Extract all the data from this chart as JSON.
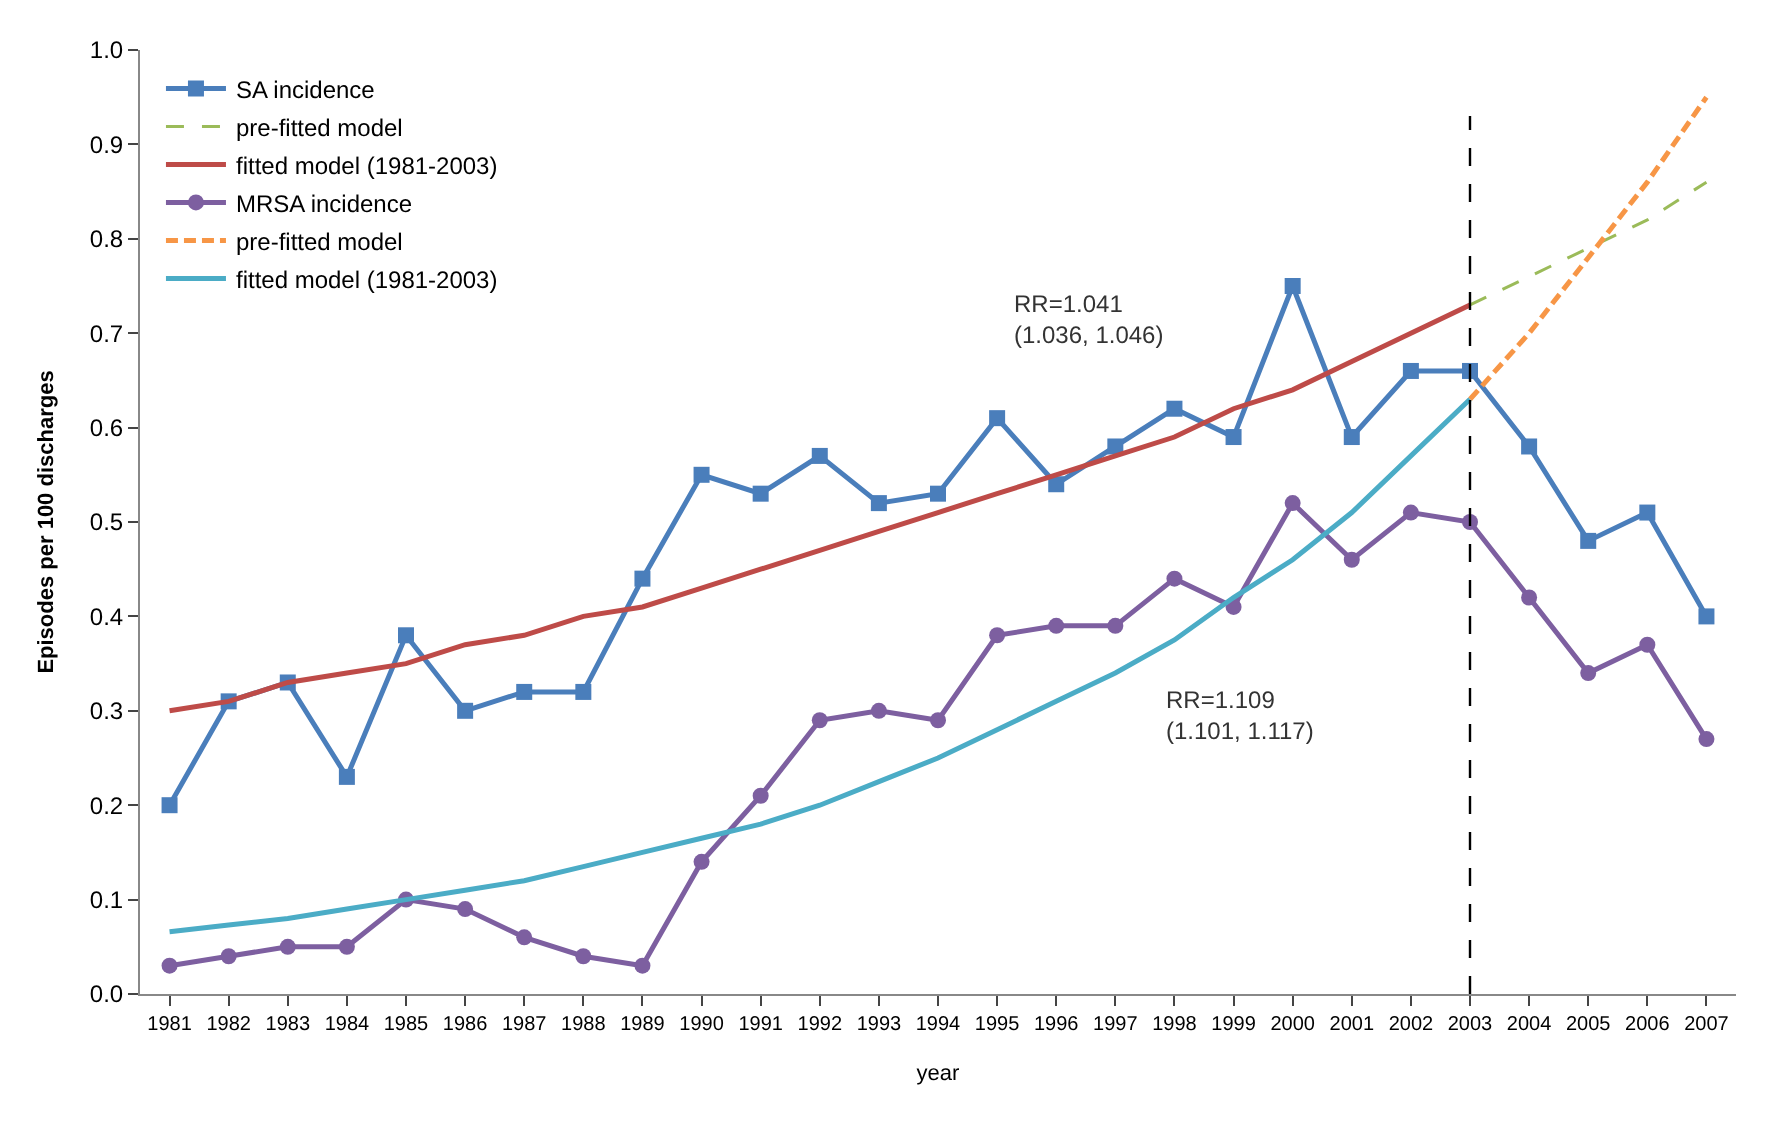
{
  "chart_data": {
    "type": "line",
    "xlabel": "year",
    "ylabel": "Episodes per 100 discharges",
    "categories": [
      "1981",
      "1982",
      "1983",
      "1984",
      "1985",
      "1986",
      "1987",
      "1988",
      "1989",
      "1990",
      "1991",
      "1992",
      "1993",
      "1994",
      "1995",
      "1996",
      "1997",
      "1998",
      "1999",
      "2000",
      "2001",
      "2002",
      "2003",
      "2004",
      "2005",
      "2006",
      "2007"
    ],
    "series": [
      {
        "name": "SA incidence",
        "color": "#4a7ebb",
        "marker": "square",
        "line_style": "solid",
        "values": [
          0.2,
          0.31,
          0.33,
          0.23,
          0.38,
          0.3,
          0.32,
          0.32,
          0.44,
          0.55,
          0.53,
          0.57,
          0.52,
          0.53,
          0.61,
          0.54,
          0.58,
          0.62,
          0.59,
          0.75,
          0.59,
          0.66,
          0.66,
          0.58,
          0.48,
          0.51,
          0.4
        ]
      },
      {
        "name": "pre-fitted model",
        "color": "#9bbb59",
        "marker": "none",
        "line_style": "dashed",
        "values": [
          null,
          null,
          null,
          null,
          null,
          null,
          null,
          null,
          null,
          null,
          null,
          null,
          null,
          null,
          null,
          null,
          null,
          null,
          null,
          null,
          null,
          null,
          0.73,
          0.76,
          0.79,
          0.82,
          0.86
        ]
      },
      {
        "name": "fitted model (1981-2003)",
        "color": "#be4b48",
        "marker": "none",
        "line_style": "solid",
        "values": [
          0.3,
          0.31,
          0.33,
          0.34,
          0.35,
          0.37,
          0.38,
          0.4,
          0.41,
          0.43,
          0.45,
          0.47,
          0.49,
          0.51,
          0.53,
          0.55,
          0.57,
          0.59,
          0.62,
          0.64,
          0.67,
          0.7,
          0.73,
          null,
          null,
          null,
          null
        ]
      },
      {
        "name": "MRSA incidence",
        "color": "#7d5fa0",
        "marker": "circle",
        "line_style": "solid",
        "values": [
          0.03,
          0.04,
          0.05,
          0.05,
          0.1,
          0.09,
          0.06,
          0.04,
          0.03,
          0.14,
          0.21,
          0.29,
          0.3,
          0.29,
          0.38,
          0.39,
          0.39,
          0.44,
          0.41,
          0.52,
          0.46,
          0.51,
          0.5,
          0.42,
          0.34,
          0.37,
          0.27
        ]
      },
      {
        "name": "pre-fitted model",
        "color": "#f79646",
        "marker": "none",
        "line_style": "longdash",
        "values": [
          null,
          null,
          null,
          null,
          null,
          null,
          null,
          null,
          null,
          null,
          null,
          null,
          null,
          null,
          null,
          null,
          null,
          null,
          null,
          null,
          null,
          null,
          0.63,
          0.7,
          0.78,
          0.86,
          0.95
        ]
      },
      {
        "name": "fitted model (1981-2003)",
        "color": "#4bacc6",
        "marker": "none",
        "line_style": "solid",
        "values": [
          0.066,
          0.073,
          0.08,
          0.09,
          0.1,
          0.11,
          0.12,
          0.135,
          0.15,
          0.165,
          0.18,
          0.2,
          0.225,
          0.25,
          0.28,
          0.31,
          0.34,
          0.375,
          0.42,
          0.46,
          0.51,
          0.57,
          0.63,
          null,
          null,
          null,
          null
        ]
      }
    ],
    "ylim": [
      0,
      1.0
    ],
    "yticks": [
      {
        "value": 0,
        "label": "0.0"
      },
      {
        "value": 0.1,
        "label": "0.1"
      },
      {
        "value": 0.2,
        "label": "0.2"
      },
      {
        "value": 0.3,
        "label": "0.3"
      },
      {
        "value": 0.4,
        "label": "0.4"
      },
      {
        "value": 0.5,
        "label": "0.5"
      },
      {
        "value": 0.6,
        "label": "0.6"
      },
      {
        "value": 0.7,
        "label": "0.7"
      },
      {
        "value": 0.8,
        "label": "0.8"
      },
      {
        "value": 0.9,
        "label": "0.9"
      },
      {
        "value": 1.0,
        "label": "1.0"
      }
    ],
    "ref_lines": [
      {
        "axis": "x",
        "value": "2003",
        "color": "#000000",
        "line_style": "dashed"
      }
    ],
    "annotations": [
      "RR=1.041\n(1.036, 1.046)",
      "RR=1.109\n(1.101, 1.117)"
    ],
    "legend": "top left"
  }
}
